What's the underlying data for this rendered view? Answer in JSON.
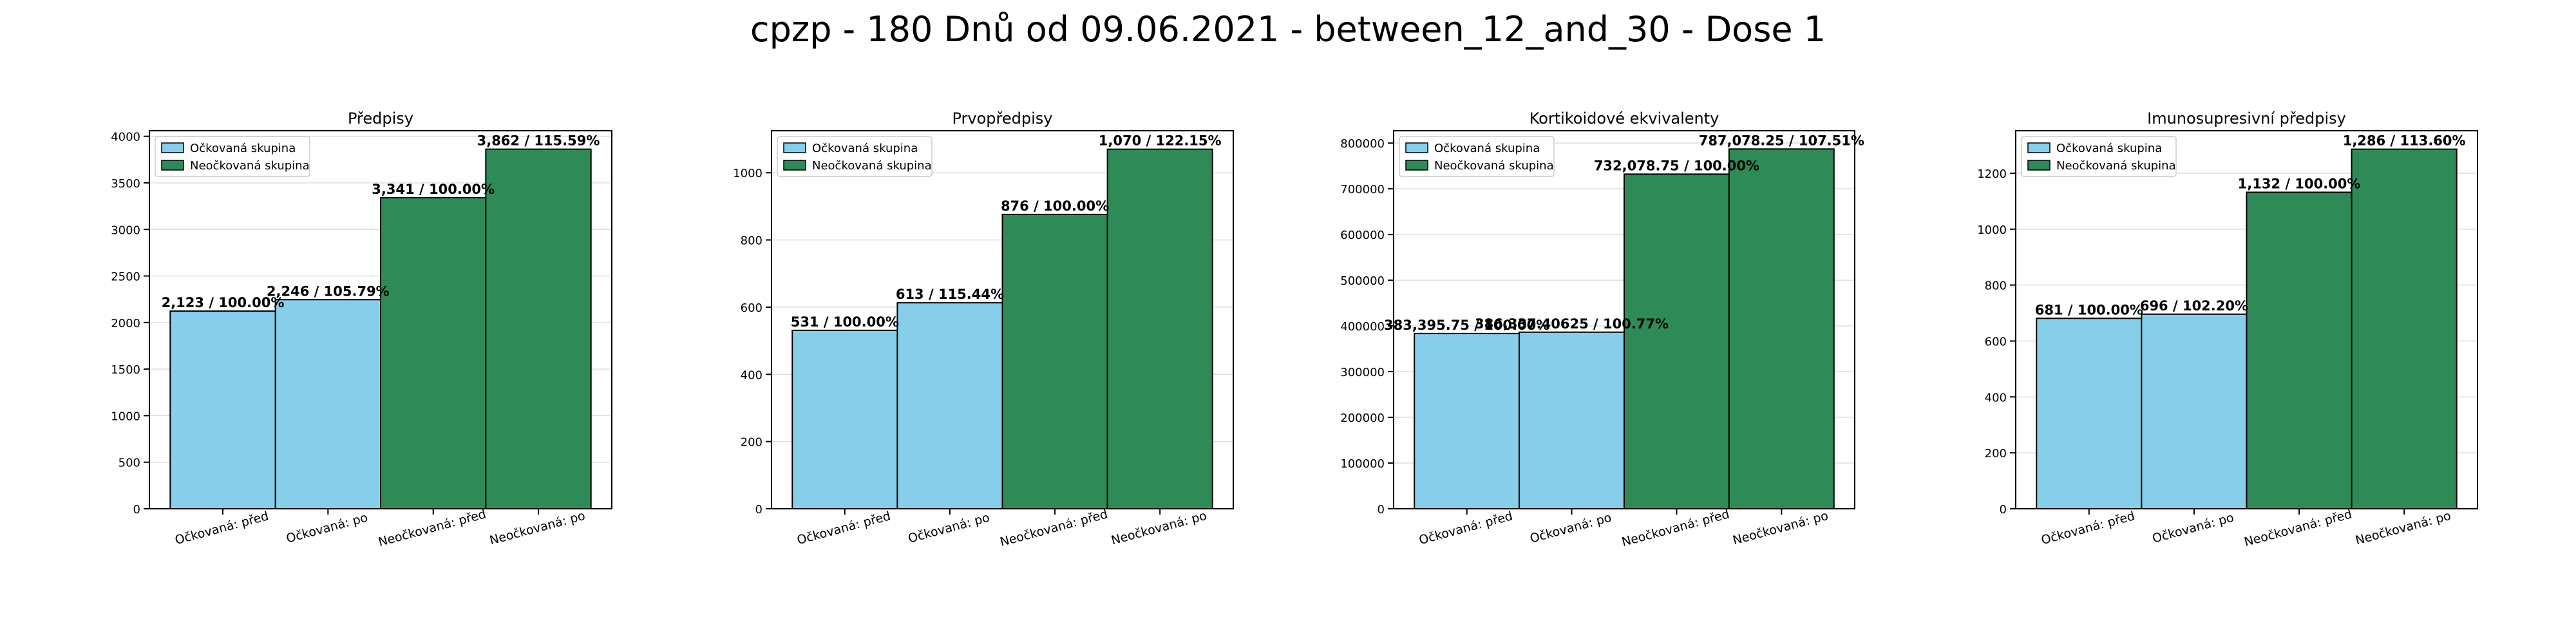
{
  "suptitle": "cpzp - 180 Dnů od 09.06.2021 - between_12_and_30 - Dose 1",
  "colors": {
    "vaccinated": "#87ceeb",
    "unvaccinated": "#2e8b57",
    "edge": "#000000",
    "grid": "#dddddd"
  },
  "chart_data": [
    {
      "type": "bar",
      "title": "Předpisy",
      "categories": [
        "Očkovaná: před",
        "Očkovaná: po",
        "Neočkovaná: před",
        "Neočkovaná: po"
      ],
      "values": [
        2123,
        2246,
        3341,
        3862
      ],
      "bar_labels": [
        "2,123 / 100.00%",
        "2,246 / 105.79%",
        "3,341 / 100.00%",
        "3,862 / 115.59%"
      ],
      "ylim": [
        0,
        4060
      ],
      "yticks": [
        "0",
        "500",
        "1000",
        "1500",
        "2000",
        "2500",
        "3000",
        "3500",
        "4000"
      ],
      "ytick_values": [
        0,
        500,
        1000,
        1500,
        2000,
        2500,
        3000,
        3500,
        4000
      ],
      "legend": [
        "Očkovaná skupina",
        "Neočkovaná skupina"
      ],
      "legend_position": "upper-left",
      "grid": true
    },
    {
      "type": "bar",
      "title": "Prvopředpisy",
      "categories": [
        "Očkovaná: před",
        "Očkovaná: po",
        "Neočkovaná: před",
        "Neočkovaná: po"
      ],
      "values": [
        531,
        613,
        876,
        1070
      ],
      "bar_labels": [
        "531 / 100.00%",
        "613 / 115.44%",
        "876 / 100.00%",
        "1,070 / 122.15%"
      ],
      "ylim": [
        0,
        1125
      ],
      "yticks": [
        "0",
        "200",
        "400",
        "600",
        "800",
        "1000"
      ],
      "ytick_values": [
        0,
        200,
        400,
        600,
        800,
        1000
      ],
      "legend": [
        "Očkovaná skupina",
        "Neočkovaná skupina"
      ],
      "legend_position": "upper-left",
      "grid": true
    },
    {
      "type": "bar",
      "title": "Kortikoidové ekvivalenty",
      "categories": [
        "Očkovaná: před",
        "Očkovaná: po",
        "Neočkovaná: před",
        "Neočkovaná: po"
      ],
      "values": [
        383395.75,
        386337.40625,
        732078.75,
        787078.25
      ],
      "bar_labels": [
        "383,395.75 / 100.00%",
        "386,337.40625 / 100.77%",
        "732,078.75 / 100.00%",
        "787,078.25 / 107.51%"
      ],
      "ylim": [
        0,
        827000
      ],
      "yticks": [
        "0",
        "100000",
        "200000",
        "300000",
        "400000",
        "500000",
        "600000",
        "700000",
        "800000"
      ],
      "ytick_values": [
        0,
        100000,
        200000,
        300000,
        400000,
        500000,
        600000,
        700000,
        800000
      ],
      "legend": [
        "Očkovaná skupina",
        "Neočkovaná skupina"
      ],
      "legend_position": "upper-left",
      "grid": true
    },
    {
      "type": "bar",
      "title": "Imunosupresivní předpisy",
      "categories": [
        "Očkovaná: před",
        "Očkovaná: po",
        "Neočkovaná: před",
        "Neočkovaná: po"
      ],
      "values": [
        681,
        696,
        1132,
        1286
      ],
      "bar_labels": [
        "681 / 100.00%",
        "696 / 102.20%",
        "1,132 / 100.00%",
        "1,286 / 113.60%"
      ],
      "ylim": [
        0,
        1352
      ],
      "yticks": [
        "0",
        "200",
        "400",
        "600",
        "800",
        "1000",
        "1200"
      ],
      "ytick_values": [
        0,
        200,
        400,
        600,
        800,
        1000,
        1200
      ],
      "legend": [
        "Očkovaná skupina",
        "Neočkovaná skupina"
      ],
      "legend_position": "upper-left",
      "grid": true
    }
  ]
}
